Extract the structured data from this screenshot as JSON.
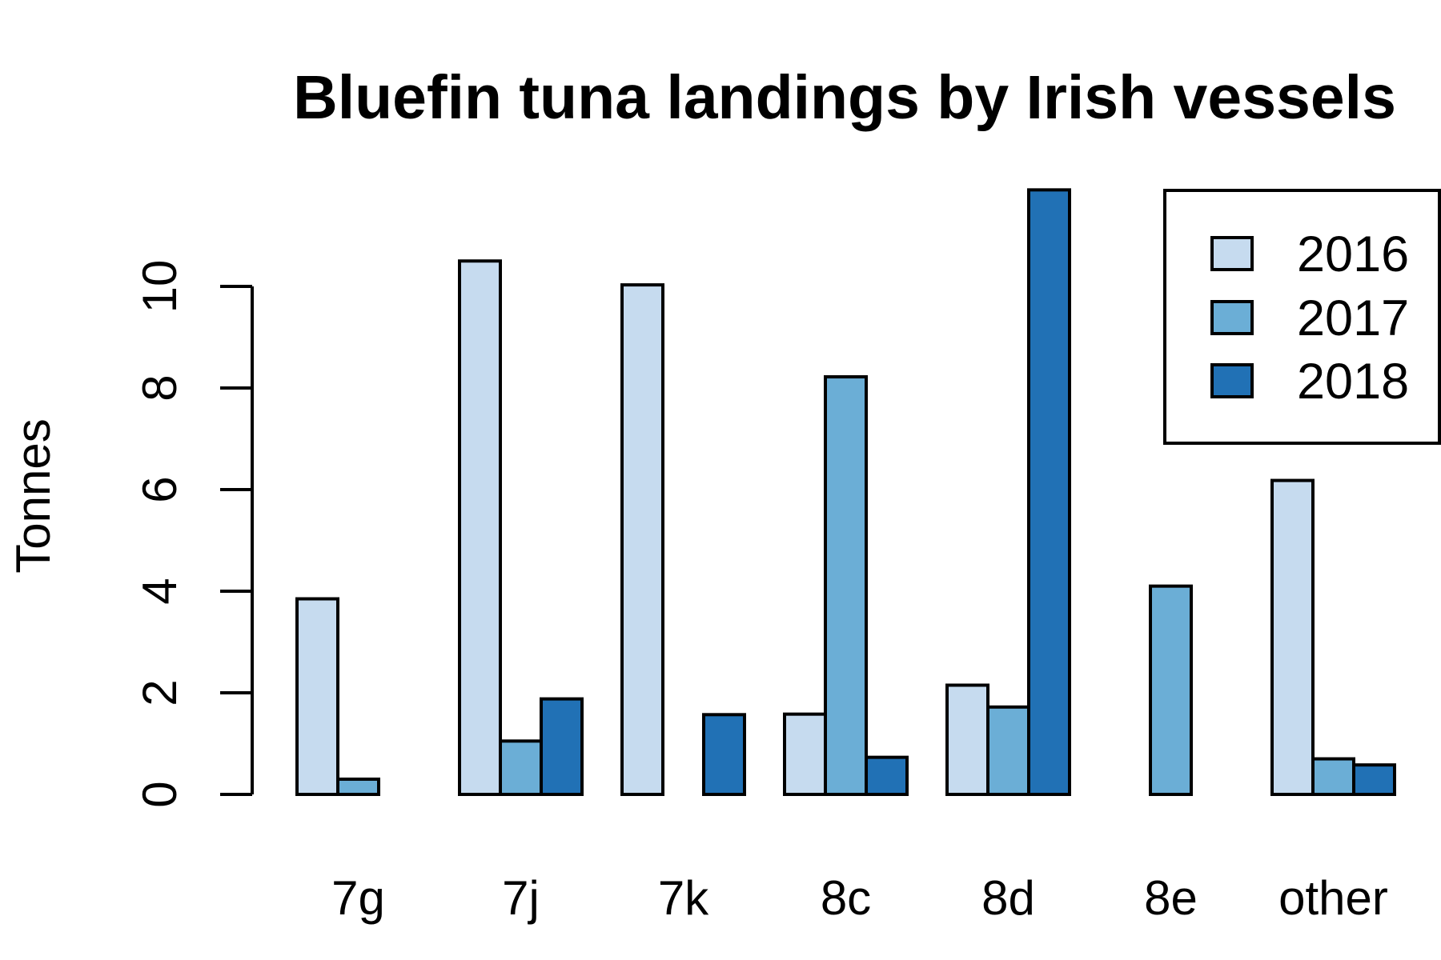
{
  "chart_data": {
    "type": "bar",
    "title": "Bluefin tuna landings by Irish vessels",
    "xlabel": "",
    "ylabel": "Tonnes",
    "categories": [
      "7g",
      "7j",
      "7k",
      "8c",
      "8d",
      "8e",
      "other"
    ],
    "series": [
      {
        "name": "2016",
        "color": "#c6dbef",
        "values": [
          3.85,
          10.5,
          10.03,
          1.58,
          2.15,
          0.0,
          6.18
        ]
      },
      {
        "name": "2017",
        "color": "#6baed6",
        "values": [
          0.3,
          1.05,
          0.0,
          8.22,
          1.72,
          4.1,
          0.7
        ]
      },
      {
        "name": "2018",
        "color": "#2171b5",
        "values": [
          0.0,
          1.88,
          1.57,
          0.73,
          11.9,
          0.0,
          0.58
        ]
      }
    ],
    "yticks": [
      "0",
      "2",
      "4",
      "6",
      "8",
      "10"
    ],
    "ylim": [
      0,
      12
    ],
    "grid": false,
    "legend_position": "top-right"
  }
}
